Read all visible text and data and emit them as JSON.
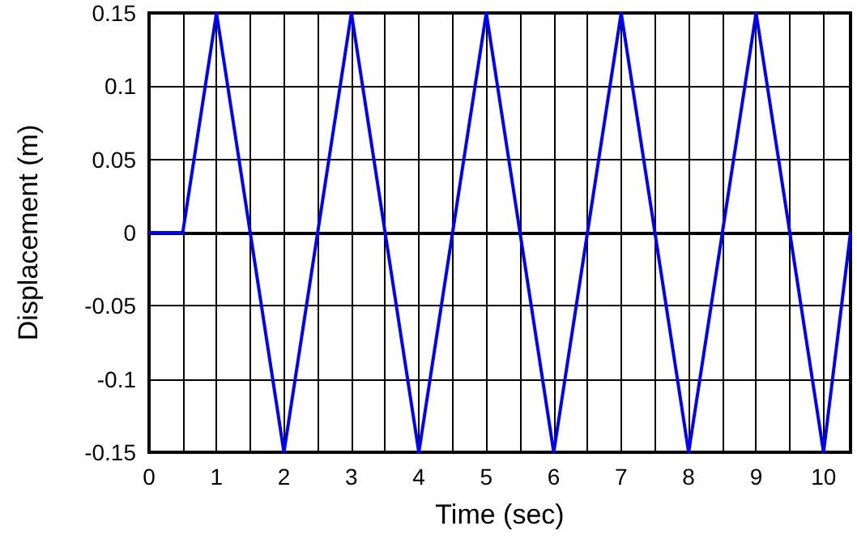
{
  "chart_data": {
    "type": "line",
    "xlabel": "Time (sec)",
    "ylabel": "Displacement (m)",
    "x": [
      0,
      0.5,
      1,
      2,
      3,
      4,
      5,
      6,
      7,
      8,
      9,
      10,
      10.4
    ],
    "series": [
      {
        "color": "#0000ff",
        "values": [
          0,
          0,
          0.15,
          -0.15,
          0.15,
          -0.15,
          0.15,
          -0.15,
          0.15,
          -0.15,
          0.15,
          -0.15,
          0
        ]
      }
    ],
    "xlim": [
      0,
      10.4
    ],
    "xticks": [
      0,
      {
        "value": 0.5,
        "label": null
      },
      1,
      {
        "value": 1.5,
        "label": null
      },
      2,
      {
        "value": 2.5,
        "label": null
      },
      3,
      {
        "value": 3.5,
        "label": null
      },
      4,
      {
        "value": 4.5,
        "label": null
      },
      5,
      {
        "value": 5.5,
        "label": null
      },
      6,
      {
        "value": 6.5,
        "label": null
      },
      7,
      {
        "value": 7.5,
        "label": null
      },
      8,
      {
        "value": 8.5,
        "label": null
      },
      9,
      {
        "value": 9.5,
        "label": null
      },
      10
    ],
    "ylim": [
      -0.15,
      0.15
    ],
    "yticks": [
      -0.15,
      -0.1,
      -0.05,
      0,
      0.05,
      0.1,
      0.15
    ],
    "grid": true,
    "marker": "none",
    "line_style": "solid"
  }
}
